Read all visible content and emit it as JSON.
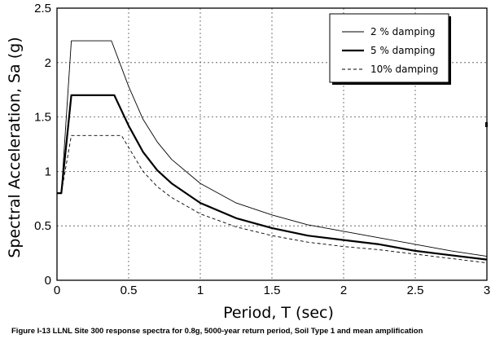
{
  "chart_data": {
    "type": "line",
    "title": "",
    "xlabel": "Period, T (sec)",
    "ylabel": "Spectral Acceleration, Sa (g)",
    "xlim": [
      0,
      3
    ],
    "ylim": [
      0,
      2.5
    ],
    "x_ticks": [
      "0",
      "0.5",
      "1",
      "1.5",
      "2",
      "2.5",
      "3"
    ],
    "y_ticks": [
      "0",
      "0.5",
      "1",
      "1.5",
      "2",
      "2.5"
    ],
    "grid": true,
    "legend_position": "top-right",
    "series": [
      {
        "name": "2 % damping",
        "style": "thin-solid",
        "x": [
          0.0,
          0.03,
          0.1,
          0.38,
          0.5,
          0.6,
          0.7,
          0.8,
          1.0,
          1.25,
          1.5,
          1.75,
          2.0,
          2.25,
          2.5,
          2.75,
          3.0
        ],
        "y": [
          0.8,
          0.8,
          2.2,
          2.2,
          1.78,
          1.48,
          1.27,
          1.11,
          0.89,
          0.71,
          0.6,
          0.51,
          0.45,
          0.39,
          0.33,
          0.27,
          0.22
        ]
      },
      {
        "name": "5 % damping",
        "style": "thick-solid",
        "x": [
          0.0,
          0.03,
          0.1,
          0.4,
          0.5,
          0.6,
          0.7,
          0.8,
          1.0,
          1.25,
          1.5,
          1.75,
          2.0,
          2.25,
          2.5,
          2.75,
          3.0
        ],
        "y": [
          0.8,
          0.8,
          1.7,
          1.7,
          1.42,
          1.18,
          1.01,
          0.89,
          0.71,
          0.57,
          0.48,
          0.41,
          0.37,
          0.33,
          0.27,
          0.23,
          0.19
        ]
      },
      {
        "name": "10% damping",
        "style": "dashed",
        "x": [
          0.0,
          0.03,
          0.1,
          0.45,
          0.5,
          0.6,
          0.7,
          0.8,
          1.0,
          1.25,
          1.5,
          1.75,
          2.0,
          2.25,
          2.5,
          2.75,
          3.0
        ],
        "y": [
          0.8,
          0.8,
          1.33,
          1.33,
          1.22,
          1.0,
          0.86,
          0.76,
          0.61,
          0.49,
          0.41,
          0.35,
          0.31,
          0.28,
          0.24,
          0.2,
          0.16
        ]
      }
    ]
  },
  "caption": "Figure I-13  LLNL Site 300 response spectra for 0.8g, 5000-year return period, Soil Type 1 and mean amplification"
}
